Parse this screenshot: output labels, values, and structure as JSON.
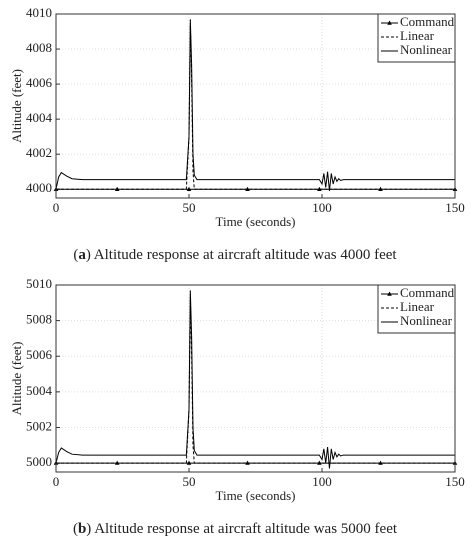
{
  "chart_data": [
    {
      "type": "line",
      "x_label": "Time (seconds)",
      "y_label": "Altitude (feet)",
      "caption": [
        "(",
        "a",
        ") Altitude response at aircraft altitude was 4000 feet"
      ],
      "xlim": [
        0,
        150
      ],
      "xticks": [
        0,
        50,
        100,
        150
      ],
      "ylim": [
        3999.5,
        4010
      ],
      "yticks": [
        4000,
        4002,
        4004,
        4006,
        4008,
        4010
      ],
      "grid": true,
      "legend": "upper right",
      "series": [
        {
          "name": "Command",
          "color": "#000000",
          "linestyle": "solid",
          "marker": "triangle",
          "x": [
            0,
            23,
            50,
            72,
            99,
            122,
            150
          ],
          "values": [
            4000,
            4000,
            4000,
            4000,
            4000,
            4000,
            4000
          ]
        },
        {
          "name": "Linear",
          "color": "#000000",
          "linestyle": "dashed",
          "x": [
            0,
            49,
            50,
            50.5,
            51,
            51.5,
            52,
            150
          ],
          "values": [
            4000,
            4000,
            4003,
            4009.4,
            4006,
            4001,
            4000,
            4000
          ]
        },
        {
          "name": "Nonlinear",
          "color": "#000000",
          "linestyle": "solid",
          "x": [
            0,
            1,
            2,
            4,
            6,
            10,
            49,
            50,
            50.5,
            51,
            51.5,
            52,
            53,
            99,
            100,
            100.7,
            101.4,
            102.1,
            102.8,
            103.5,
            104.2,
            104.9,
            105.6,
            106.3,
            107,
            108,
            150
          ],
          "values": [
            4000,
            4000.7,
            4000.95,
            4000.75,
            4000.6,
            4000.55,
            4000.55,
            4003,
            4009.7,
            4007,
            4002,
            4000.8,
            4000.55,
            4000.55,
            4000.3,
            4000.9,
            4000.1,
            4001,
            3999.9,
            4000.9,
            4000.3,
            4000.7,
            4000.45,
            4000.6,
            4000.5,
            4000.55,
            4000.55
          ]
        }
      ]
    },
    {
      "type": "line",
      "x_label": "Time (seconds)",
      "y_label": "Altitude (feet)",
      "caption": [
        "(",
        "b",
        ") Altitude response at aircraft altitude was 5000 feet"
      ],
      "xlim": [
        0,
        150
      ],
      "xticks": [
        0,
        50,
        100,
        150
      ],
      "ylim": [
        4999.5,
        5010
      ],
      "yticks": [
        5000,
        5002,
        5004,
        5006,
        5008,
        5010
      ],
      "grid": true,
      "legend": "upper right",
      "series": [
        {
          "name": "Command",
          "color": "#000000",
          "linestyle": "solid",
          "marker": "triangle",
          "x": [
            0,
            23,
            50,
            72,
            99,
            122,
            150
          ],
          "values": [
            5000,
            5000,
            5000,
            5000,
            5000,
            5000,
            5000
          ]
        },
        {
          "name": "Linear",
          "color": "#000000",
          "linestyle": "dashed",
          "x": [
            0,
            49,
            50,
            50.5,
            51,
            51.5,
            52,
            150
          ],
          "values": [
            5000,
            5000,
            5003,
            5009.3,
            5006,
            5001,
            5000,
            5000
          ]
        },
        {
          "name": "Nonlinear",
          "color": "#000000",
          "linestyle": "solid",
          "x": [
            0,
            1,
            2,
            4,
            6,
            10,
            49,
            50,
            50.5,
            51,
            51.5,
            52,
            53,
            99,
            100,
            100.7,
            101.4,
            102.1,
            102.8,
            103.5,
            104.2,
            104.9,
            105.6,
            106.3,
            107,
            108,
            150
          ],
          "values": [
            5000,
            5000.6,
            5000.85,
            5000.65,
            5000.5,
            5000.45,
            5000.45,
            5003,
            5009.7,
            5007,
            5002,
            5000.7,
            5000.45,
            5000.45,
            5000.2,
            5000.8,
            5000,
            5000.9,
            4999.7,
            5000.8,
            5000.2,
            5000.6,
            5000.35,
            5000.5,
            5000.4,
            5000.45,
            5000.45
          ]
        }
      ]
    }
  ]
}
